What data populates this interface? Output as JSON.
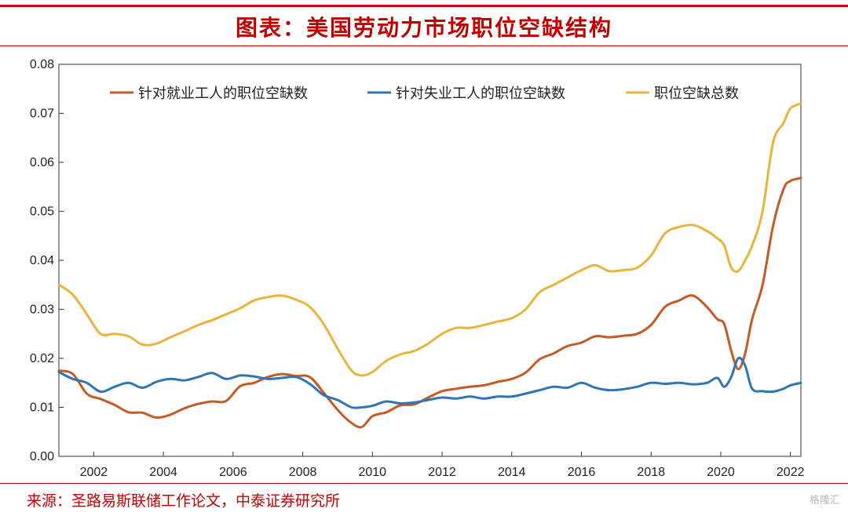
{
  "title": "图表：美国劳动力市场职位空缺结构",
  "source": "来源：圣路易斯联储工作论文，中泰证券研究所",
  "watermark": "格隆汇",
  "chart_data": {
    "type": "line",
    "title": "",
    "xlabel": "",
    "ylabel": "",
    "xlim": [
      2001,
      2022.3
    ],
    "ylim": [
      0,
      0.08
    ],
    "grid": false,
    "legend_position": "top",
    "x_ticks": [
      "2002",
      "2004",
      "2006",
      "2008",
      "2010",
      "2012",
      "2014",
      "2016",
      "2018",
      "2020",
      "2022"
    ],
    "y_ticks": [
      "0.00",
      "0.01",
      "0.02",
      "0.03",
      "0.04",
      "0.05",
      "0.06",
      "0.07",
      "0.08"
    ],
    "series": [
      {
        "name": "针对就业工人的职位空缺数",
        "color": "#c55a24",
        "points": [
          [
            2001.0,
            0.0175
          ],
          [
            2001.4,
            0.0168
          ],
          [
            2001.8,
            0.0128
          ],
          [
            2002.2,
            0.0117
          ],
          [
            2002.6,
            0.0105
          ],
          [
            2003.0,
            0.009
          ],
          [
            2003.4,
            0.0089
          ],
          [
            2003.8,
            0.0079
          ],
          [
            2004.2,
            0.0085
          ],
          [
            2004.6,
            0.0098
          ],
          [
            2005.0,
            0.0107
          ],
          [
            2005.4,
            0.0112
          ],
          [
            2005.8,
            0.0113
          ],
          [
            2006.2,
            0.0143
          ],
          [
            2006.6,
            0.015
          ],
          [
            2007.0,
            0.0162
          ],
          [
            2007.4,
            0.0168
          ],
          [
            2007.8,
            0.0164
          ],
          [
            2008.2,
            0.0162
          ],
          [
            2008.6,
            0.013
          ],
          [
            2009.0,
            0.0095
          ],
          [
            2009.4,
            0.0068
          ],
          [
            2009.7,
            0.006
          ],
          [
            2010.0,
            0.0082
          ],
          [
            2010.4,
            0.009
          ],
          [
            2010.8,
            0.0104
          ],
          [
            2011.2,
            0.0106
          ],
          [
            2011.6,
            0.012
          ],
          [
            2012.0,
            0.0133
          ],
          [
            2012.4,
            0.0138
          ],
          [
            2012.8,
            0.0142
          ],
          [
            2013.2,
            0.0145
          ],
          [
            2013.6,
            0.0152
          ],
          [
            2014.0,
            0.0158
          ],
          [
            2014.4,
            0.0171
          ],
          [
            2014.8,
            0.0198
          ],
          [
            2015.2,
            0.021
          ],
          [
            2015.6,
            0.0225
          ],
          [
            2016.0,
            0.0232
          ],
          [
            2016.4,
            0.0245
          ],
          [
            2016.8,
            0.0243
          ],
          [
            2017.2,
            0.0246
          ],
          [
            2017.6,
            0.025
          ],
          [
            2018.0,
            0.0268
          ],
          [
            2018.4,
            0.0305
          ],
          [
            2018.8,
            0.0318
          ],
          [
            2019.2,
            0.0328
          ],
          [
            2019.6,
            0.0305
          ],
          [
            2019.9,
            0.028
          ],
          [
            2020.1,
            0.027
          ],
          [
            2020.3,
            0.0215
          ],
          [
            2020.5,
            0.0178
          ],
          [
            2020.7,
            0.021
          ],
          [
            2020.9,
            0.028
          ],
          [
            2021.2,
            0.035
          ],
          [
            2021.5,
            0.047
          ],
          [
            2021.8,
            0.0545
          ],
          [
            2022.0,
            0.0562
          ],
          [
            2022.3,
            0.0568
          ]
        ]
      },
      {
        "name": "针对失业工人的职位空缺数",
        "color": "#2e75b6",
        "points": [
          [
            2001.0,
            0.0172
          ],
          [
            2001.4,
            0.0158
          ],
          [
            2001.8,
            0.015
          ],
          [
            2002.2,
            0.0132
          ],
          [
            2002.6,
            0.0142
          ],
          [
            2003.0,
            0.015
          ],
          [
            2003.4,
            0.014
          ],
          [
            2003.8,
            0.0152
          ],
          [
            2004.2,
            0.0158
          ],
          [
            2004.6,
            0.0155
          ],
          [
            2005.0,
            0.0162
          ],
          [
            2005.4,
            0.017
          ],
          [
            2005.8,
            0.0158
          ],
          [
            2006.2,
            0.0165
          ],
          [
            2006.6,
            0.0163
          ],
          [
            2007.0,
            0.0158
          ],
          [
            2007.4,
            0.016
          ],
          [
            2007.8,
            0.0162
          ],
          [
            2008.2,
            0.0148
          ],
          [
            2008.6,
            0.0125
          ],
          [
            2009.0,
            0.0115
          ],
          [
            2009.4,
            0.01
          ],
          [
            2009.7,
            0.01
          ],
          [
            2010.0,
            0.0103
          ],
          [
            2010.4,
            0.0112
          ],
          [
            2010.8,
            0.0108
          ],
          [
            2011.2,
            0.011
          ],
          [
            2011.6,
            0.0115
          ],
          [
            2012.0,
            0.012
          ],
          [
            2012.4,
            0.0118
          ],
          [
            2012.8,
            0.0122
          ],
          [
            2013.2,
            0.0118
          ],
          [
            2013.6,
            0.0122
          ],
          [
            2014.0,
            0.0122
          ],
          [
            2014.4,
            0.0128
          ],
          [
            2014.8,
            0.0135
          ],
          [
            2015.2,
            0.0142
          ],
          [
            2015.6,
            0.014
          ],
          [
            2016.0,
            0.015
          ],
          [
            2016.4,
            0.014
          ],
          [
            2016.8,
            0.0135
          ],
          [
            2017.2,
            0.0137
          ],
          [
            2017.6,
            0.0142
          ],
          [
            2018.0,
            0.015
          ],
          [
            2018.4,
            0.0148
          ],
          [
            2018.8,
            0.015
          ],
          [
            2019.2,
            0.0147
          ],
          [
            2019.6,
            0.015
          ],
          [
            2019.9,
            0.016
          ],
          [
            2020.1,
            0.0142
          ],
          [
            2020.3,
            0.0162
          ],
          [
            2020.5,
            0.02
          ],
          [
            2020.7,
            0.0185
          ],
          [
            2020.9,
            0.0138
          ],
          [
            2021.2,
            0.0133
          ],
          [
            2021.5,
            0.0132
          ],
          [
            2021.8,
            0.0138
          ],
          [
            2022.0,
            0.0145
          ],
          [
            2022.3,
            0.015
          ]
        ]
      },
      {
        "name": "职位空缺总数",
        "color": "#e8b43c",
        "points": [
          [
            2001.0,
            0.035
          ],
          [
            2001.4,
            0.033
          ],
          [
            2001.8,
            0.029
          ],
          [
            2002.2,
            0.025
          ],
          [
            2002.6,
            0.025
          ],
          [
            2003.0,
            0.0245
          ],
          [
            2003.4,
            0.0228
          ],
          [
            2003.8,
            0.023
          ],
          [
            2004.2,
            0.0243
          ],
          [
            2004.6,
            0.0255
          ],
          [
            2005.0,
            0.0268
          ],
          [
            2005.4,
            0.0278
          ],
          [
            2005.8,
            0.029
          ],
          [
            2006.2,
            0.0302
          ],
          [
            2006.6,
            0.0318
          ],
          [
            2007.0,
            0.0325
          ],
          [
            2007.4,
            0.0328
          ],
          [
            2007.8,
            0.032
          ],
          [
            2008.2,
            0.0305
          ],
          [
            2008.6,
            0.027
          ],
          [
            2009.0,
            0.022
          ],
          [
            2009.4,
            0.0175
          ],
          [
            2009.7,
            0.0165
          ],
          [
            2010.0,
            0.0172
          ],
          [
            2010.4,
            0.0195
          ],
          [
            2010.8,
            0.0208
          ],
          [
            2011.2,
            0.0215
          ],
          [
            2011.6,
            0.023
          ],
          [
            2012.0,
            0.025
          ],
          [
            2012.4,
            0.0262
          ],
          [
            2012.8,
            0.0262
          ],
          [
            2013.2,
            0.0268
          ],
          [
            2013.6,
            0.0275
          ],
          [
            2014.0,
            0.0282
          ],
          [
            2014.4,
            0.03
          ],
          [
            2014.8,
            0.0335
          ],
          [
            2015.2,
            0.035
          ],
          [
            2015.6,
            0.0365
          ],
          [
            2016.0,
            0.038
          ],
          [
            2016.4,
            0.039
          ],
          [
            2016.8,
            0.0378
          ],
          [
            2017.2,
            0.038
          ],
          [
            2017.6,
            0.0385
          ],
          [
            2018.0,
            0.041
          ],
          [
            2018.4,
            0.0455
          ],
          [
            2018.8,
            0.0468
          ],
          [
            2019.2,
            0.0472
          ],
          [
            2019.6,
            0.046
          ],
          [
            2019.9,
            0.0445
          ],
          [
            2020.1,
            0.043
          ],
          [
            2020.3,
            0.0385
          ],
          [
            2020.5,
            0.0378
          ],
          [
            2020.7,
            0.04
          ],
          [
            2020.9,
            0.043
          ],
          [
            2021.2,
            0.05
          ],
          [
            2021.5,
            0.064
          ],
          [
            2021.8,
            0.068
          ],
          [
            2022.0,
            0.071
          ],
          [
            2022.3,
            0.072
          ]
        ]
      }
    ]
  }
}
